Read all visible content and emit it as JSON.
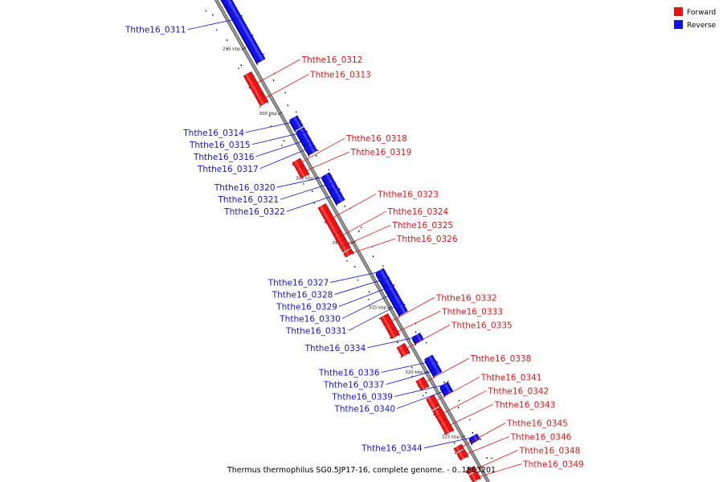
{
  "caption": "Thermus thermophilus SG0.5JP17-16, complete genome. - 0..1863201",
  "legend": [
    {
      "label": "Forward",
      "color": "#ee1111"
    },
    {
      "label": "Reverse",
      "color": "#1111ee"
    }
  ],
  "colors": {
    "forward": "#ee1111",
    "forward_light": "#ff6f6f",
    "forward_dark": "#a00000",
    "reverse": "#1111ee",
    "reverse_light": "#6f6fff",
    "reverse_dark": "#0000a0",
    "backbone": "#9a9a9a"
  },
  "ticks": [
    {
      "label": "295 kbp",
      "kbp": 295
    },
    {
      "label": "300 kbp",
      "kbp": 300
    },
    {
      "label": "305 kbp",
      "kbp": 305
    },
    {
      "label": "310 kbp",
      "kbp": 310
    },
    {
      "label": "315 kbp",
      "kbp": 315
    },
    {
      "label": "320 kbp",
      "kbp": 320
    },
    {
      "label": "325 kbp",
      "kbp": 325
    }
  ],
  "genes": [
    {
      "id": "Ththe16_0311",
      "strand": "reverse",
      "start": 290.0,
      "end": 296.3
    },
    {
      "id": "Ththe16_0312",
      "strand": "forward",
      "start": 296.6,
      "end": 298.3
    },
    {
      "id": "Ththe16_0313",
      "strand": "forward",
      "start": 298.3,
      "end": 298.9
    },
    {
      "id": "Ththe16_0314",
      "strand": "reverse",
      "start": 300.7,
      "end": 301.5
    },
    {
      "id": "Ththe16_0315",
      "strand": "reverse",
      "start": 301.6,
      "end": 302.3
    },
    {
      "id": "Ththe16_0316",
      "strand": "reverse",
      "start": 302.3,
      "end": 302.7
    },
    {
      "id": "Ththe16_0317",
      "strand": "reverse",
      "start": 302.7,
      "end": 303.4
    },
    {
      "id": "Ththe16_0318",
      "strand": "forward",
      "start": 303.3,
      "end": 303.8
    },
    {
      "id": "Ththe16_0319",
      "strand": "forward",
      "start": 303.8,
      "end": 304.5
    },
    {
      "id": "Ththe16_0320",
      "strand": "reverse",
      "start": 305.1,
      "end": 305.6
    },
    {
      "id": "Ththe16_0321",
      "strand": "reverse",
      "start": 305.5,
      "end": 306.2
    },
    {
      "id": "Ththe16_0322",
      "strand": "reverse",
      "start": 306.2,
      "end": 307.2
    },
    {
      "id": "Ththe16_0323",
      "strand": "forward",
      "start": 306.8,
      "end": 308.9
    },
    {
      "id": "Ththe16_0324",
      "strand": "forward",
      "start": 308.9,
      "end": 309.5
    },
    {
      "id": "Ththe16_0325",
      "strand": "forward",
      "start": 309.5,
      "end": 310.2
    },
    {
      "id": "Ththe16_0326",
      "strand": "forward",
      "start": 310.3,
      "end": 310.6
    },
    {
      "id": "Ththe16_0327",
      "strand": "reverse",
      "start": 312.5,
      "end": 312.9
    },
    {
      "id": "Ththe16_0328",
      "strand": "reverse",
      "start": 312.9,
      "end": 313.6
    },
    {
      "id": "Ththe16_0329",
      "strand": "reverse",
      "start": 313.6,
      "end": 314.1
    },
    {
      "id": "Ththe16_0330",
      "strand": "reverse",
      "start": 314.1,
      "end": 314.5
    },
    {
      "id": "Ththe16_0331",
      "strand": "reverse",
      "start": 314.5,
      "end": 315.8
    },
    {
      "id": "Ththe16_0332",
      "strand": "forward",
      "start": 315.3,
      "end": 316.4
    },
    {
      "id": "Ththe16_0333",
      "strand": "forward",
      "start": 316.4,
      "end": 316.9
    },
    {
      "id": "Ththe16_0334",
      "strand": "reverse",
      "start": 317.5,
      "end": 318.0
    },
    {
      "id": "Ththe16_0335",
      "strand": "forward",
      "start": 317.6,
      "end": 318.3
    },
    {
      "id": "Ththe16_0336",
      "strand": "reverse",
      "start": 319.2,
      "end": 320.1
    },
    {
      "id": "Ththe16_0337",
      "strand": "reverse",
      "start": 320.1,
      "end": 320.5
    },
    {
      "id": "Ththe16_0338",
      "strand": "forward",
      "start": 320.2,
      "end": 320.9
    },
    {
      "id": "Ththe16_0339",
      "strand": "reverse",
      "start": 321.3,
      "end": 321.6
    },
    {
      "id": "Ththe16_0340",
      "strand": "reverse",
      "start": 321.6,
      "end": 322.0
    },
    {
      "id": "Ththe16_0341",
      "strand": "forward",
      "start": 321.6,
      "end": 322.4
    },
    {
      "id": "Ththe16_0342",
      "strand": "forward",
      "start": 322.5,
      "end": 323.4
    },
    {
      "id": "Ththe16_0343",
      "strand": "forward",
      "start": 323.4,
      "end": 324.3
    },
    {
      "id": "Ththe16_0344",
      "strand": "reverse",
      "start": 325.3,
      "end": 325.7
    },
    {
      "id": "Ththe16_0345",
      "strand": "forward",
      "start": 325.4,
      "end": 325.7
    },
    {
      "id": "Ththe16_0346",
      "strand": "forward",
      "start": 325.8,
      "end": 326.3
    },
    {
      "id": "Ththe16_0348",
      "strand": "forward",
      "start": 327.1,
      "end": 327.4
    },
    {
      "id": "Ththe16_0349",
      "strand": "forward",
      "start": 327.5,
      "end": 328.0
    }
  ]
}
